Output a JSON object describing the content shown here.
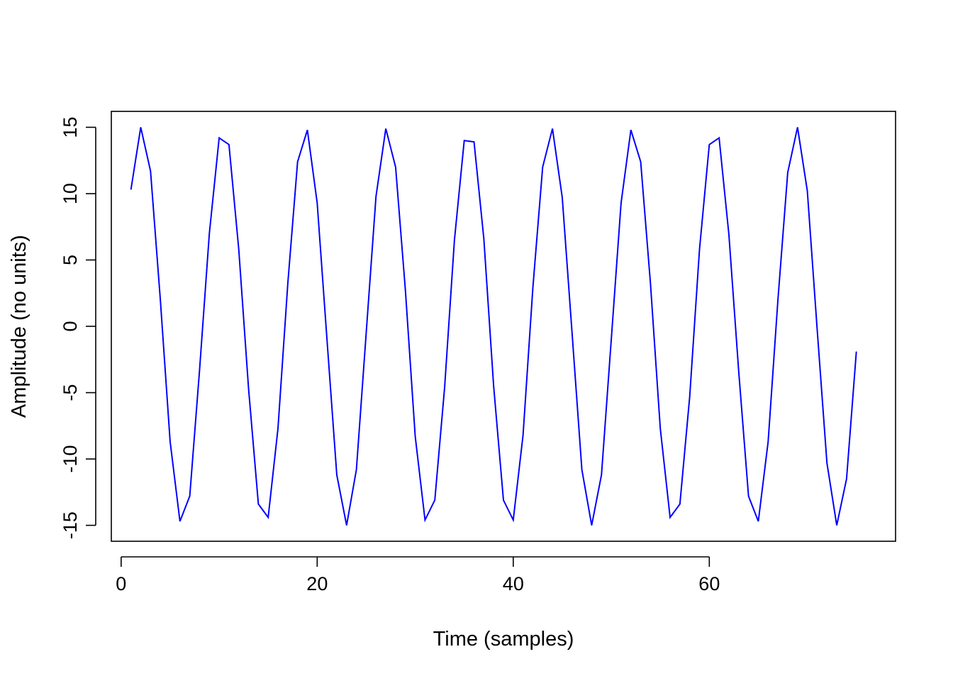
{
  "chart_data": {
    "type": "line",
    "title": "",
    "xlabel": "Time (samples)",
    "ylabel": "Amplitude (no units)",
    "xlim": [
      -1,
      79
    ],
    "ylim": [
      -16.2,
      16.2
    ],
    "xticks": [
      0,
      20,
      40,
      60
    ],
    "xtick_labels": [
      "0",
      "20",
      "40",
      "60"
    ],
    "yticks": [
      -15,
      -10,
      -5,
      0,
      5,
      10,
      15
    ],
    "ytick_labels": [
      "-15",
      "-10",
      "-5",
      "0",
      "5",
      "10",
      "15"
    ],
    "grid": false,
    "legend": "none",
    "series": [
      {
        "color": "#0000ff",
        "x": [
          1,
          2,
          3,
          4,
          5,
          6,
          7,
          8,
          9,
          10,
          11,
          12,
          13,
          14,
          15,
          16,
          17,
          18,
          19,
          20,
          21,
          22,
          23,
          24,
          25,
          26,
          27,
          28,
          29,
          30,
          31,
          32,
          33,
          34,
          35,
          36,
          37,
          38,
          39,
          40,
          41,
          42,
          43,
          44,
          45,
          46,
          47,
          48,
          49,
          50,
          51,
          52,
          53,
          54,
          55,
          56,
          57,
          58,
          59,
          60,
          61,
          62,
          63,
          64,
          65,
          66,
          67,
          68,
          69,
          70,
          71,
          72,
          73,
          74,
          75
        ],
        "y": [
          10.3,
          15.0,
          11.7,
          2.0,
          -8.7,
          -14.7,
          -12.8,
          -3.3,
          7.0,
          14.2,
          13.7,
          5.8,
          -4.7,
          -13.4,
          -14.4,
          -7.7,
          3.2,
          12.4,
          14.8,
          9.3,
          -1.0,
          -11.2,
          -15.0,
          -10.8,
          -0.5,
          9.8,
          14.9,
          12.0,
          2.7,
          -8.3,
          -14.6,
          -13.1,
          -4.6,
          6.5,
          14.0,
          13.9,
          6.6,
          -4.5,
          -13.1,
          -14.6,
          -8.2,
          2.9,
          12.0,
          14.9,
          9.7,
          -0.5,
          -10.8,
          -15.0,
          -11.2,
          -1.0,
          9.3,
          14.8,
          12.4,
          3.2,
          -7.7,
          -14.4,
          -13.4,
          -5.3,
          5.8,
          13.7,
          14.2,
          6.9,
          -3.4,
          -12.8,
          -14.7,
          -8.7,
          2.0,
          11.6,
          15.0,
          10.2,
          -0.2,
          -10.3,
          -15.0,
          -11.5,
          -1.9
        ]
      }
    ]
  }
}
